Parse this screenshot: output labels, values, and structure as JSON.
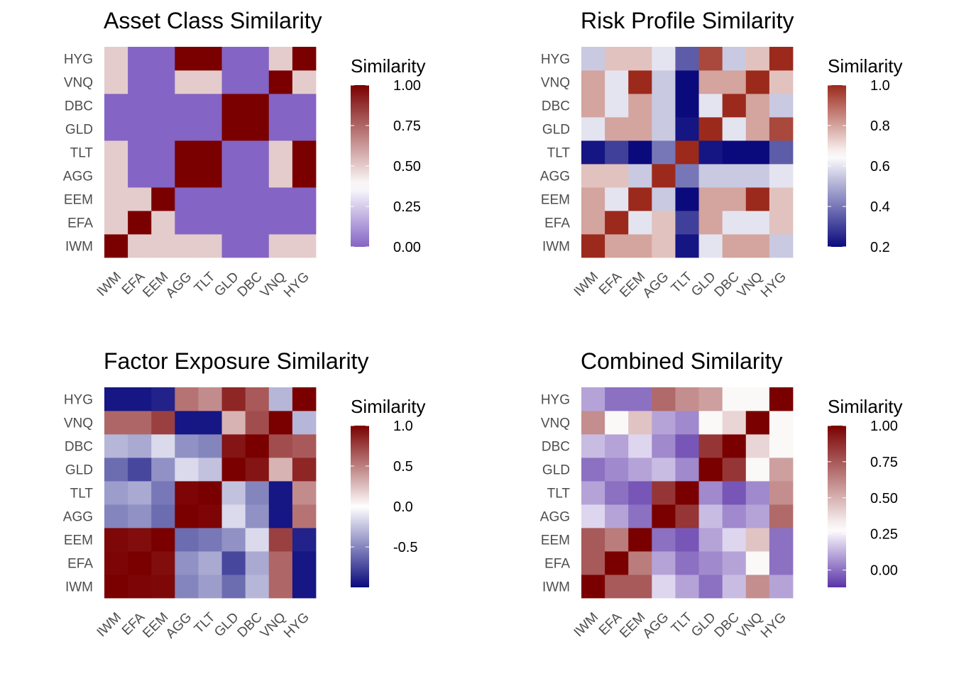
{
  "chart_data": [
    {
      "type": "heatmap",
      "title": "Asset Class Similarity",
      "categories": [
        "IWM",
        "EFA",
        "EEM",
        "AGG",
        "TLT",
        "GLD",
        "DBC",
        "VNQ",
        "HYG"
      ],
      "legend": {
        "title": "Similarity",
        "ticks": [
          0.0,
          0.25,
          0.5,
          0.75,
          1.0
        ],
        "tick_labels": [
          "0.00",
          "0.25",
          "0.50",
          "0.75",
          "1.00"
        ],
        "range": [
          0.0,
          1.0
        ]
      },
      "color_scale": {
        "low": "#8464c4",
        "mid": "#ffffff",
        "high": "#7a0000",
        "midpoint": 0.375
      },
      "values": [
        [
          1.0,
          0.5,
          0.5,
          0.5,
          0.5,
          0.0,
          0.0,
          0.5,
          0.5
        ],
        [
          0.5,
          1.0,
          0.5,
          0.0,
          0.0,
          0.0,
          0.0,
          0.0,
          0.0
        ],
        [
          0.5,
          0.5,
          1.0,
          0.0,
          0.0,
          0.0,
          0.0,
          0.0,
          0.0
        ],
        [
          0.5,
          0.0,
          0.0,
          1.0,
          1.0,
          0.0,
          0.0,
          0.5,
          1.0
        ],
        [
          0.5,
          0.0,
          0.0,
          1.0,
          1.0,
          0.0,
          0.0,
          0.5,
          1.0
        ],
        [
          0.0,
          0.0,
          0.0,
          0.0,
          0.0,
          1.0,
          1.0,
          0.0,
          0.0
        ],
        [
          0.0,
          0.0,
          0.0,
          0.0,
          0.0,
          1.0,
          1.0,
          0.0,
          0.0
        ],
        [
          0.5,
          0.0,
          0.0,
          0.5,
          0.5,
          0.0,
          0.0,
          1.0,
          0.5
        ],
        [
          0.5,
          0.0,
          0.0,
          1.0,
          1.0,
          0.0,
          0.0,
          0.5,
          1.0
        ]
      ]
    },
    {
      "type": "heatmap",
      "title": "Risk Profile Similarity",
      "categories": [
        "IWM",
        "EFA",
        "EEM",
        "AGG",
        "TLT",
        "GLD",
        "DBC",
        "VNQ",
        "HYG"
      ],
      "legend": {
        "title": "Similarity",
        "ticks": [
          0.2,
          0.4,
          0.6,
          0.8,
          1.0
        ],
        "tick_labels": [
          "0.2",
          "0.4",
          "0.6",
          "0.8",
          "1.0"
        ],
        "range": [
          0.2,
          1.0
        ]
      },
      "color_scale": {
        "low": "#0a0a7d",
        "mid": "#ffffff",
        "high": "#9b2a1c",
        "midpoint": 0.65
      },
      "values": [
        [
          1.0,
          0.8,
          0.8,
          0.75,
          0.22,
          0.6,
          0.8,
          0.8,
          0.55
        ],
        [
          0.8,
          1.0,
          0.6,
          0.75,
          0.3,
          0.8,
          0.6,
          0.6,
          0.75
        ],
        [
          0.8,
          0.6,
          1.0,
          0.55,
          0.2,
          0.8,
          0.8,
          1.0,
          0.75
        ],
        [
          0.75,
          0.75,
          0.55,
          1.0,
          0.4,
          0.55,
          0.55,
          0.55,
          0.6
        ],
        [
          0.22,
          0.3,
          0.2,
          0.4,
          1.0,
          0.22,
          0.2,
          0.2,
          0.35
        ],
        [
          0.6,
          0.8,
          0.8,
          0.55,
          0.22,
          1.0,
          0.6,
          0.8,
          0.95
        ],
        [
          0.8,
          0.6,
          0.8,
          0.55,
          0.2,
          0.6,
          1.0,
          0.8,
          0.55
        ],
        [
          0.8,
          0.6,
          1.0,
          0.55,
          0.2,
          0.8,
          0.8,
          1.0,
          0.75
        ],
        [
          0.55,
          0.75,
          0.75,
          0.6,
          0.35,
          0.95,
          0.55,
          0.75,
          1.0
        ]
      ]
    },
    {
      "type": "heatmap",
      "title": "Factor Exposure Similarity",
      "categories": [
        "IWM",
        "EFA",
        "EEM",
        "AGG",
        "TLT",
        "GLD",
        "DBC",
        "VNQ",
        "HYG"
      ],
      "legend": {
        "title": "Similarity",
        "ticks": [
          -0.5,
          0.0,
          0.5,
          1.0
        ],
        "tick_labels": [
          "-0.5",
          "0.0",
          "0.5",
          "1.0"
        ],
        "range": [
          -1.0,
          1.0
        ]
      },
      "color_scale": {
        "low": "#0a0a7d",
        "mid": "#ffffff",
        "high": "#7a0000",
        "midpoint": 0.0
      },
      "values": [
        [
          1.0,
          0.98,
          0.97,
          -0.5,
          -0.4,
          -0.6,
          -0.3,
          0.6,
          -0.95
        ],
        [
          0.98,
          1.0,
          0.95,
          -0.45,
          -0.35,
          -0.75,
          -0.35,
          0.6,
          -0.95
        ],
        [
          0.97,
          0.95,
          1.0,
          -0.6,
          -0.55,
          -0.45,
          -0.15,
          0.75,
          -0.9
        ],
        [
          -0.5,
          -0.45,
          -0.6,
          1.0,
          0.98,
          -0.15,
          -0.45,
          -0.95,
          0.55
        ],
        [
          -0.4,
          -0.35,
          -0.55,
          0.98,
          1.0,
          -0.25,
          -0.5,
          -0.95,
          0.45
        ],
        [
          -0.6,
          -0.75,
          -0.45,
          -0.15,
          -0.25,
          1.0,
          0.92,
          0.3,
          0.85
        ],
        [
          -0.3,
          -0.35,
          -0.15,
          -0.45,
          -0.5,
          0.92,
          1.0,
          0.7,
          0.65
        ],
        [
          0.6,
          0.6,
          0.75,
          -0.95,
          -0.95,
          0.3,
          0.7,
          1.0,
          -0.3
        ],
        [
          -0.95,
          -0.95,
          -0.9,
          0.55,
          0.45,
          0.85,
          0.65,
          -0.3,
          1.0
        ]
      ]
    },
    {
      "type": "heatmap",
      "title": "Combined Similarity",
      "categories": [
        "IWM",
        "EFA",
        "EEM",
        "AGG",
        "TLT",
        "GLD",
        "DBC",
        "VNQ",
        "HYG"
      ],
      "legend": {
        "title": "Similarity",
        "ticks": [
          0.0,
          0.25,
          0.5,
          0.75,
          1.0
        ],
        "tick_labels": [
          "0.00",
          "0.25",
          "0.50",
          "0.75",
          "1.00"
        ],
        "range": [
          -0.12,
          1.0
        ]
      },
      "color_scale": {
        "low": "#5a32a8",
        "mid": "#ffffff",
        "high": "#7a0000",
        "midpoint": 0.28
      },
      "values": [
        [
          1.0,
          0.75,
          0.75,
          0.2,
          0.1,
          0.0,
          0.15,
          0.6,
          0.1
        ],
        [
          0.75,
          1.0,
          0.65,
          0.1,
          0.0,
          0.05,
          0.1,
          0.3,
          0.0
        ],
        [
          0.75,
          0.65,
          1.0,
          0.0,
          -0.05,
          0.1,
          0.2,
          0.45,
          0.0
        ],
        [
          0.2,
          0.1,
          0.0,
          1.0,
          0.85,
          0.15,
          0.05,
          0.1,
          0.7
        ],
        [
          0.1,
          0.0,
          -0.05,
          0.85,
          1.0,
          0.05,
          -0.05,
          0.05,
          0.6
        ],
        [
          0.0,
          0.05,
          0.1,
          0.15,
          0.05,
          1.0,
          0.85,
          0.3,
          0.55
        ],
        [
          0.15,
          0.1,
          0.2,
          0.05,
          -0.05,
          0.85,
          1.0,
          0.4,
          0.3
        ],
        [
          0.6,
          0.3,
          0.45,
          0.1,
          0.05,
          0.3,
          0.4,
          1.0,
          0.3
        ],
        [
          0.1,
          0.0,
          0.0,
          0.7,
          0.6,
          0.55,
          0.3,
          0.3,
          1.0
        ]
      ]
    }
  ]
}
